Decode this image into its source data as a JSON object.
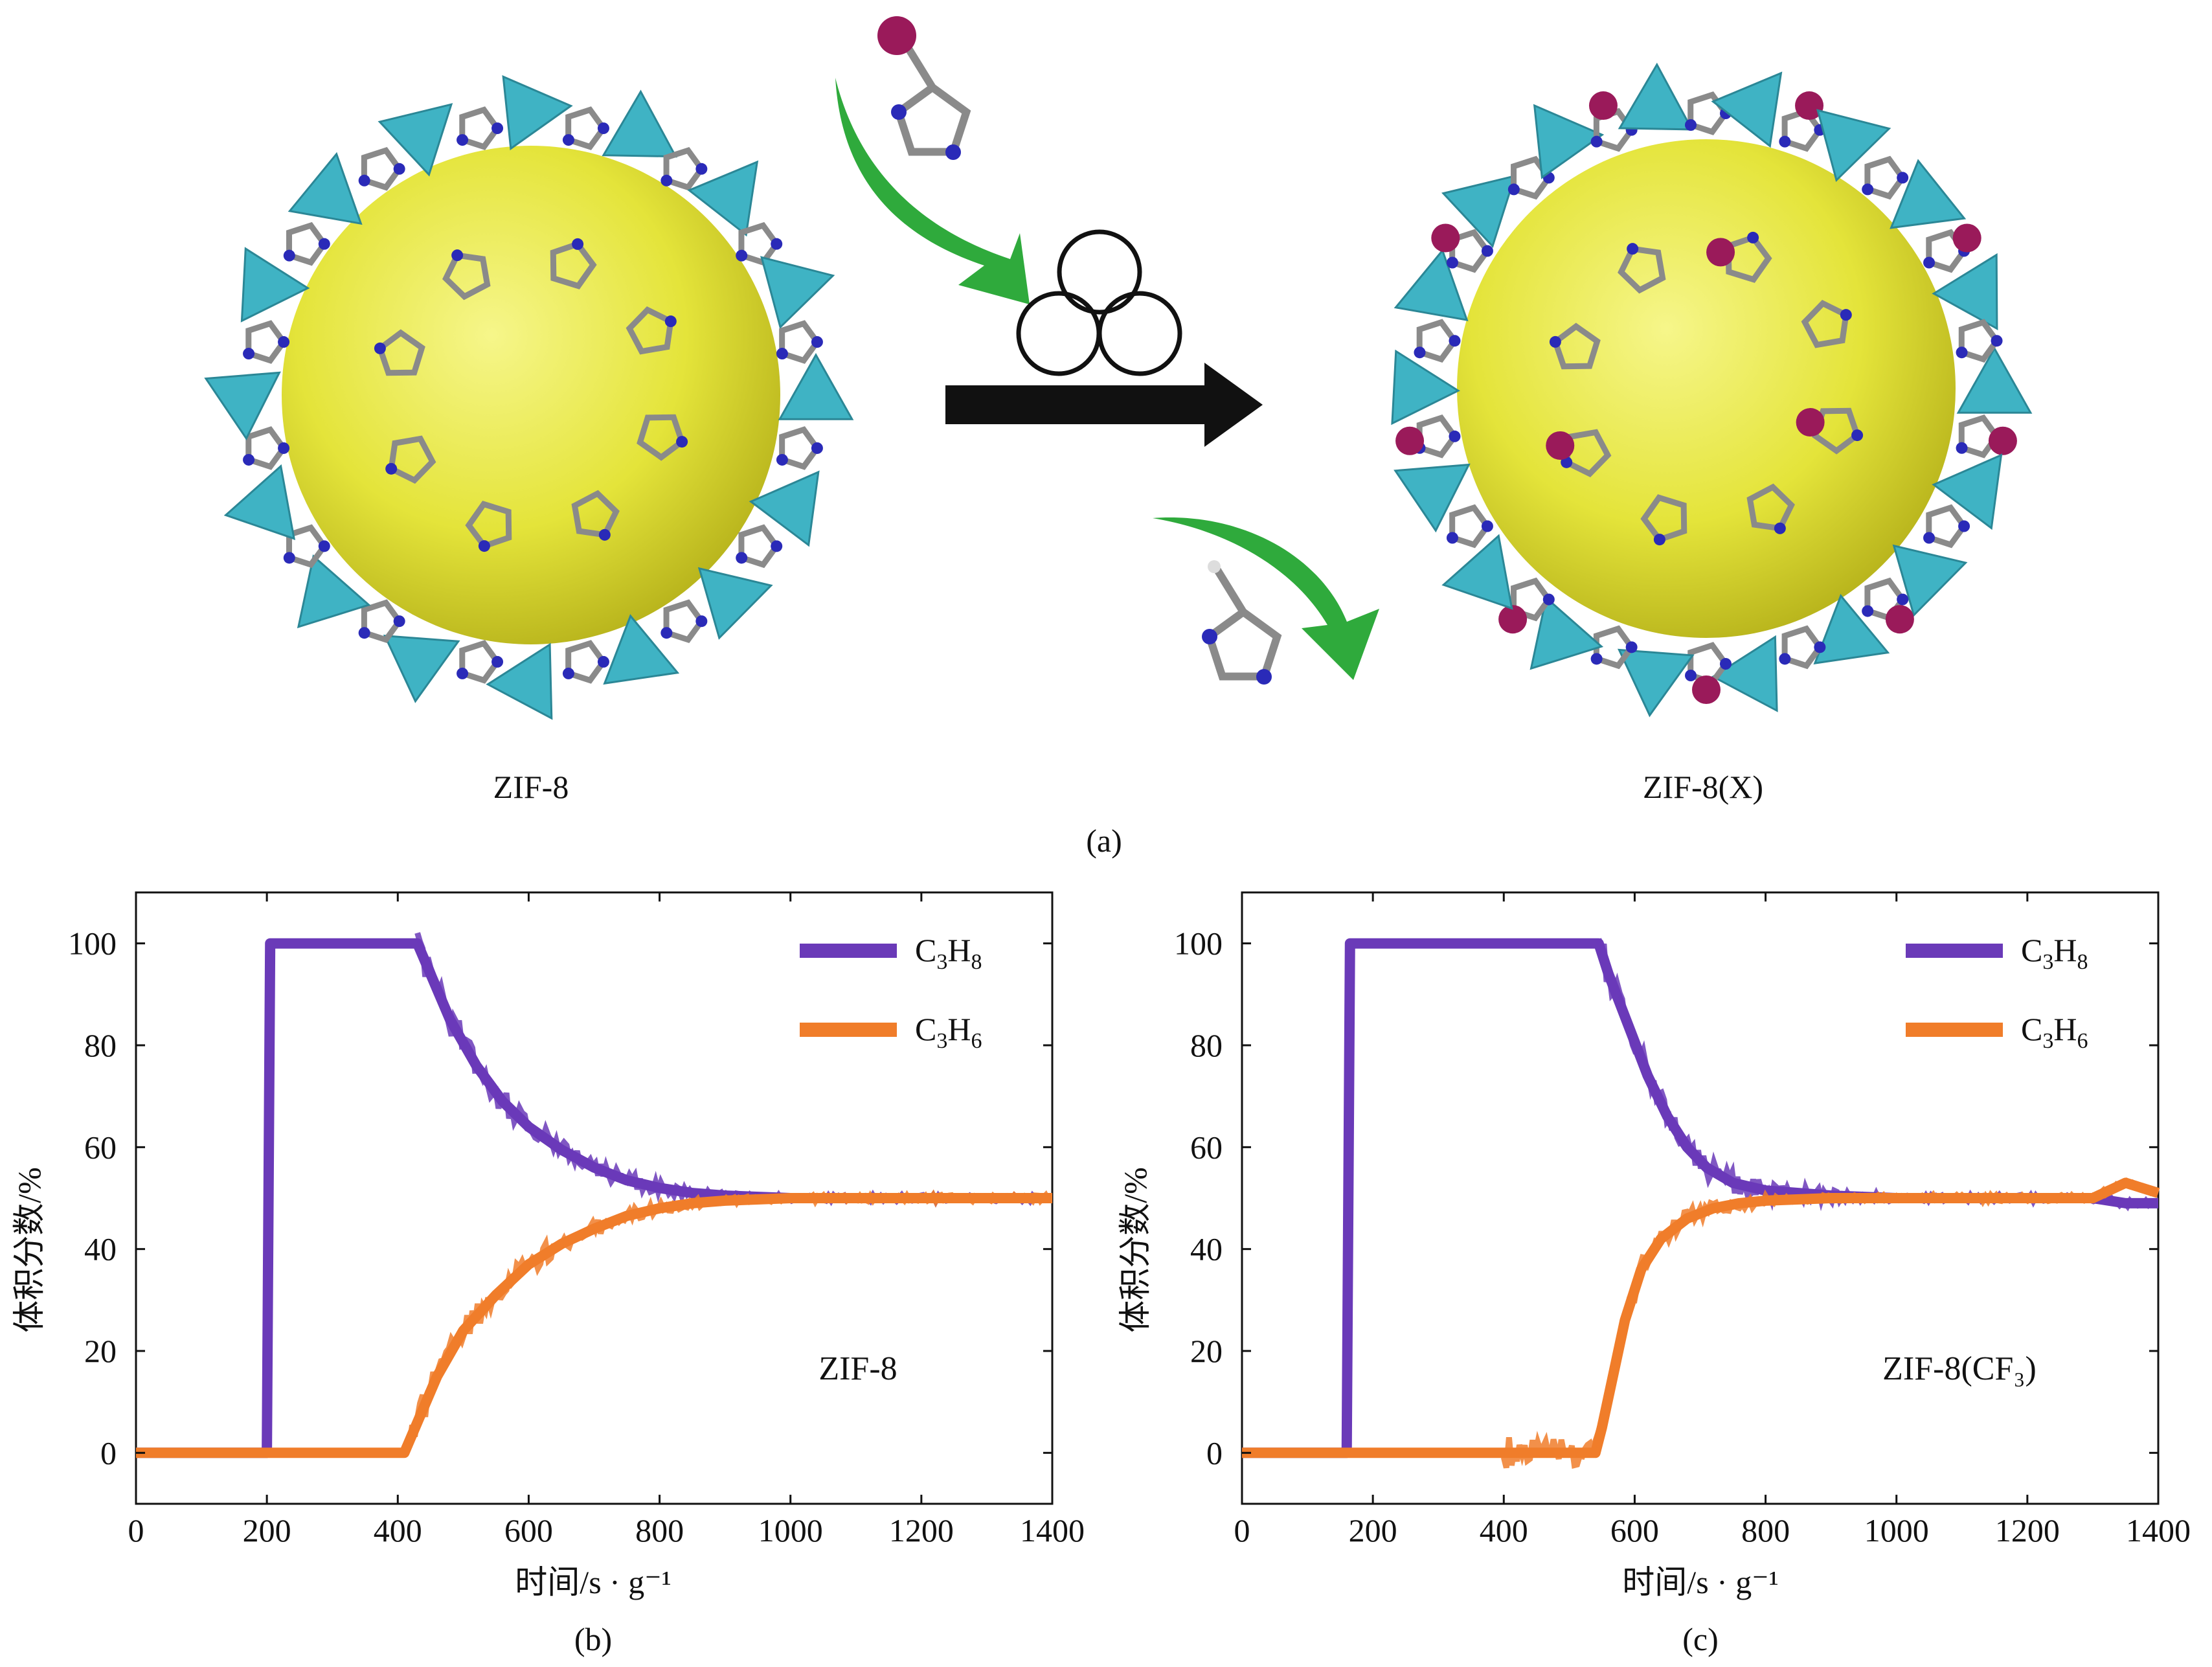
{
  "panel_a": {
    "left_label": "ZIF-8",
    "right_label": "ZIF-8(X)",
    "caption": "(a)"
  },
  "colors": {
    "zn_tetrahedra": "#3fb3c4",
    "cage_sphere": "#e4e43a",
    "linker_carbon": "#8a8a8a",
    "nitrogen": "#2a2ab8",
    "halogen": "#9a1a5a",
    "green_arrow": "#2faa3c",
    "c3h8": "#6a3ab8",
    "c3h6": "#f07d2a"
  },
  "chart_data": [
    {
      "type": "line",
      "caption": "(b)",
      "annotation": "ZIF-8",
      "xlabel": "时间/s · g⁻¹",
      "ylabel": "体积分数/%",
      "xlim": [
        0,
        1400
      ],
      "ylim": [
        -10,
        110
      ],
      "xticks": [
        0,
        200,
        400,
        600,
        800,
        1000,
        1200,
        1400
      ],
      "yticks": [
        0,
        20,
        40,
        60,
        80,
        100
      ],
      "grid": false,
      "legend_position": "top-right",
      "series": [
        {
          "name": "C3H8",
          "color": "#6a3ab8",
          "x": [
            0,
            200,
            205,
            210,
            430,
            450,
            480,
            520,
            560,
            600,
            650,
            700,
            750,
            800,
            850,
            900,
            1000,
            1100,
            1200,
            1300,
            1400
          ],
          "y": [
            0,
            0,
            100,
            100,
            100,
            94,
            85,
            76,
            69,
            64,
            59.5,
            56,
            53.5,
            52,
            51,
            50.5,
            50,
            50,
            50,
            50,
            50
          ]
        },
        {
          "name": "C3H6",
          "color": "#f07d2a",
          "x": [
            0,
            200,
            410,
            430,
            460,
            500,
            550,
            600,
            650,
            700,
            750,
            800,
            850,
            900,
            1000,
            1100,
            1200,
            1300,
            1400
          ],
          "y": [
            0,
            0,
            0,
            6,
            15,
            24,
            31,
            37,
            41,
            44,
            46.5,
            48,
            49,
            49.5,
            50,
            50,
            50,
            50,
            50
          ]
        }
      ]
    },
    {
      "type": "line",
      "caption": "(c)",
      "annotation": "ZIF-8(CF₃)",
      "xlabel": "时间/s · g⁻¹",
      "ylabel": "体积分数/%",
      "xlim": [
        0,
        1400
      ],
      "ylim": [
        -10,
        110
      ],
      "xticks": [
        0,
        200,
        400,
        600,
        800,
        1000,
        1200,
        1400
      ],
      "yticks": [
        0,
        20,
        40,
        60,
        80,
        100
      ],
      "grid": false,
      "legend_position": "top-right",
      "series": [
        {
          "name": "C3H8",
          "color": "#6a3ab8",
          "x": [
            0,
            160,
            165,
            175,
            545,
            560,
            590,
            620,
            650,
            680,
            710,
            750,
            800,
            850,
            900,
            1000,
            1100,
            1200,
            1300,
            1350,
            1400
          ],
          "y": [
            0,
            0,
            100,
            100,
            100,
            94,
            84,
            74,
            66,
            60,
            56,
            53,
            51.5,
            51,
            50.5,
            50,
            50,
            50,
            50,
            49,
            49
          ]
        },
        {
          "name": "C3H6",
          "color": "#f07d2a",
          "x": [
            0,
            200,
            400,
            540,
            550,
            565,
            585,
            610,
            640,
            680,
            720,
            760,
            800,
            900,
            1000,
            1100,
            1200,
            1300,
            1350,
            1400
          ],
          "y": [
            0,
            0,
            0,
            0,
            5,
            14,
            26,
            36,
            42,
            46,
            48,
            49,
            49.5,
            50,
            50,
            50,
            50,
            50,
            53,
            51
          ]
        }
      ]
    }
  ]
}
